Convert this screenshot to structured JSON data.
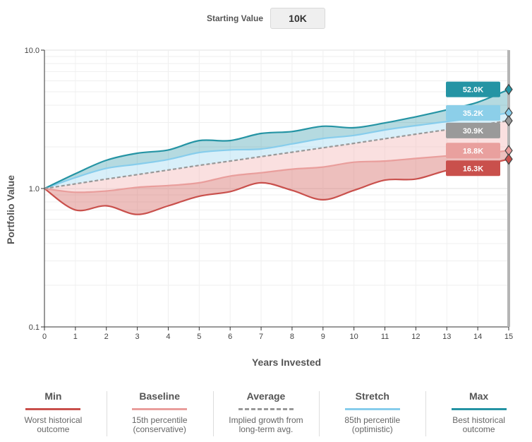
{
  "controls": {
    "starting_value_label": "Starting Value",
    "starting_value": "10K"
  },
  "colors": {
    "min": "#c9504c",
    "baseline": "#e99e9c",
    "average": "#999999",
    "stretch": "#87cdec",
    "max": "#2594a4"
  },
  "chart_data": {
    "type": "area",
    "xlabel": "Years Invested",
    "ylabel": "Portfolio Value",
    "y_scale": "log",
    "ylim": [
      0.1,
      10.0
    ],
    "yticks": [
      "0.1",
      "1.0",
      "10.0"
    ],
    "x": [
      0,
      1,
      2,
      3,
      4,
      5,
      6,
      7,
      8,
      9,
      10,
      11,
      12,
      13,
      14,
      15
    ],
    "series": [
      {
        "key": "max",
        "name": "Max",
        "values": [
          1.0,
          1.28,
          1.6,
          1.8,
          1.9,
          2.22,
          2.22,
          2.5,
          2.58,
          2.82,
          2.75,
          2.98,
          3.3,
          3.7,
          4.2,
          5.2
        ]
      },
      {
        "key": "stretch",
        "name": "Stretch",
        "values": [
          1.0,
          1.2,
          1.4,
          1.5,
          1.62,
          1.82,
          1.9,
          1.93,
          2.1,
          2.3,
          2.42,
          2.65,
          2.85,
          3.05,
          3.25,
          3.52
        ]
      },
      {
        "key": "average",
        "name": "Average",
        "values": [
          1.0,
          1.08,
          1.17,
          1.26,
          1.36,
          1.47,
          1.58,
          1.7,
          1.83,
          1.97,
          2.12,
          2.29,
          2.47,
          2.66,
          2.87,
          3.09
        ]
      },
      {
        "key": "baseline",
        "name": "Baseline",
        "values": [
          1.0,
          0.94,
          0.96,
          1.02,
          1.05,
          1.1,
          1.23,
          1.3,
          1.38,
          1.43,
          1.55,
          1.58,
          1.65,
          1.72,
          1.78,
          1.88
        ]
      },
      {
        "key": "min",
        "name": "Min",
        "values": [
          1.0,
          0.7,
          0.75,
          0.65,
          0.75,
          0.88,
          0.95,
          1.1,
          0.97,
          0.83,
          0.97,
          1.15,
          1.17,
          1.35,
          1.45,
          1.63
        ]
      }
    ],
    "end_labels": [
      {
        "key": "max",
        "text": "52.0K"
      },
      {
        "key": "stretch",
        "text": "35.2K"
      },
      {
        "key": "average",
        "text": "30.9K"
      },
      {
        "key": "baseline",
        "text": "18.8K"
      },
      {
        "key": "min",
        "text": "16.3K"
      }
    ]
  },
  "legend": [
    {
      "key": "min",
      "title": "Min",
      "desc1": "Worst historical",
      "desc2": "outcome",
      "dashed": false
    },
    {
      "key": "baseline",
      "title": "Baseline",
      "desc1": "15th percentile",
      "desc2": "(conservative)",
      "dashed": false
    },
    {
      "key": "average",
      "title": "Average",
      "desc1": "Implied growth from",
      "desc2": "long-term avg.",
      "dashed": true
    },
    {
      "key": "stretch",
      "title": "Stretch",
      "desc1": "85th percentile",
      "desc2": "(optimistic)",
      "dashed": false
    },
    {
      "key": "max",
      "title": "Max",
      "desc1": "Best historical",
      "desc2": "outcome",
      "dashed": false
    }
  ]
}
